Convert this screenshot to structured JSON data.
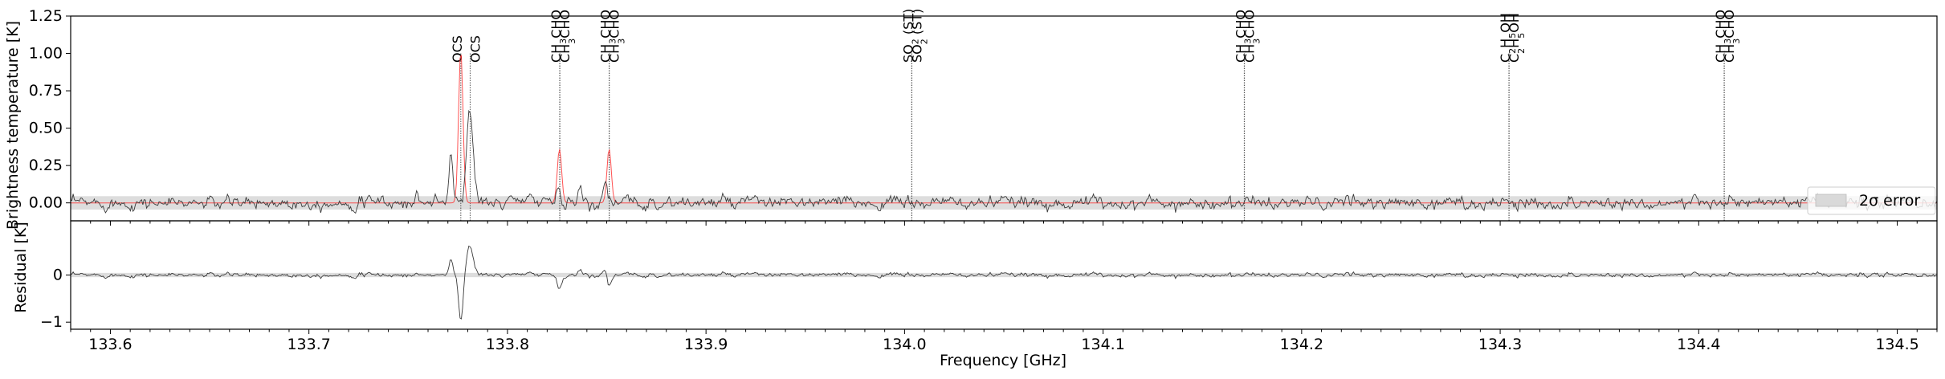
{
  "chart_data": [
    {
      "panel": "spectrum",
      "type": "line",
      "xlim": [
        133.58,
        134.52
      ],
      "ylim": [
        -0.12,
        1.25
      ],
      "ylabel": "Brightness temperature [K]",
      "xlabel": "",
      "yticks": [
        0.0,
        0.25,
        0.5,
        0.75,
        1.0,
        1.25
      ],
      "ytick_labels": [
        "0.00",
        "0.25",
        "0.50",
        "0.75",
        "1.00",
        "1.25"
      ],
      "grid": false,
      "legend": {
        "placement": "right",
        "entries": [
          {
            "label": "2σ error",
            "color": "#d9d9d9"
          }
        ]
      },
      "error_band_2sigma": [
        -0.045,
        0.045
      ],
      "series": [
        {
          "role": "observed",
          "color": "#3a3a3a",
          "baseline_noise_rms": 0.02,
          "peaks": [
            {
              "x": 133.7715,
              "height": 0.36,
              "width": 0.0009
            },
            {
              "x": 133.781,
              "height": 0.62,
              "width": 0.0017
            },
            {
              "x": 133.8125,
              "height": 0.1,
              "width": 0.0008
            },
            {
              "x": 133.8255,
              "height": 0.12,
              "width": 0.0008
            },
            {
              "x": 133.8365,
              "height": 0.12,
              "width": 0.0008
            },
            {
              "x": 133.849,
              "height": 0.15,
              "width": 0.0012
            },
            {
              "x": 133.8305,
              "height": 0.06,
              "width": 0.0006
            },
            {
              "x": 133.7365,
              "height": 0.06,
              "width": 0.0006
            },
            {
              "x": 133.7545,
              "height": 0.05,
              "width": 0.0006
            },
            {
              "x": 133.7635,
              "height": 0.06,
              "width": 0.0006
            },
            {
              "x": 133.8015,
              "height": 0.05,
              "width": 0.0006
            }
          ]
        },
        {
          "role": "model",
          "color": "#ff3333",
          "baseline": 0.0,
          "peaks": [
            {
              "x": 133.7765,
              "height": 1.02,
              "width": 0.0011
            },
            {
              "x": 133.8262,
              "height": 0.36,
              "width": 0.0011
            },
            {
              "x": 133.8512,
              "height": 0.36,
              "width": 0.0011
            }
          ]
        }
      ],
      "line_markers": [
        {
          "x": 133.7765,
          "label": "OCS",
          "html": "OCS"
        },
        {
          "x": 133.7812,
          "label": "OCS",
          "html": "OCS"
        },
        {
          "x": 133.8263,
          "label": "CH3CHO",
          "html": "CH<tspan baseline-shift=\"sub\" font-size=\"11\">3</tspan>CHO"
        },
        {
          "x": 133.8264,
          "label": "CH3CHO",
          "html": "CH<tspan baseline-shift=\"sub\" font-size=\"11\">3</tspan>CHO"
        },
        {
          "x": 133.8512,
          "label": "CH3CHO",
          "html": "CH<tspan baseline-shift=\"sub\" font-size=\"11\">3</tspan>CHO"
        },
        {
          "x": 133.8513,
          "label": "CH3CHO",
          "html": "CH<tspan baseline-shift=\"sub\" font-size=\"11\">3</tspan>CHO"
        },
        {
          "x": 134.0036,
          "label": "SO2 (ST)",
          "html": "SO<tspan baseline-shift=\"sub\" font-size=\"11\">2</tspan> (ST)"
        },
        {
          "x": 134.0037,
          "label": "SO2 (ST)",
          "html": "SO<tspan baseline-shift=\"sub\" font-size=\"11\">2</tspan> (ST)"
        },
        {
          "x": 134.1711,
          "label": "CH3CHO",
          "html": "CH<tspan baseline-shift=\"sub\" font-size=\"11\">3</tspan>CHO"
        },
        {
          "x": 134.1712,
          "label": "CH3CHO",
          "html": "CH<tspan baseline-shift=\"sub\" font-size=\"11\">3</tspan>CHO"
        },
        {
          "x": 134.3044,
          "label": "C2H5OH",
          "html": "C<tspan baseline-shift=\"sub\" font-size=\"11\">2</tspan>H<tspan baseline-shift=\"sub\" font-size=\"11\">5</tspan>OH"
        },
        {
          "x": 134.3045,
          "label": "C2H5OH",
          "html": "C<tspan baseline-shift=\"sub\" font-size=\"11\">2</tspan>H<tspan baseline-shift=\"sub\" font-size=\"11\">5</tspan>OH"
        },
        {
          "x": 134.4128,
          "label": "CH3CHO",
          "html": "CH<tspan baseline-shift=\"sub\" font-size=\"11\">3</tspan>CHO"
        },
        {
          "x": 134.4129,
          "label": "CH3CHO",
          "html": "CH<tspan baseline-shift=\"sub\" font-size=\"11\">3</tspan>CHO"
        }
      ]
    },
    {
      "panel": "residual",
      "type": "line",
      "xlim": [
        133.58,
        134.52
      ],
      "ylim": [
        -1.15,
        1.15
      ],
      "ylabel": "Residual [K]",
      "xlabel": "Frequency [GHz]",
      "yticks": [
        -1,
        0
      ],
      "ytick_labels": [
        "−1",
        "0"
      ],
      "xticks": [
        133.6,
        133.7,
        133.8,
        133.9,
        134.0,
        134.1,
        134.2,
        134.3,
        134.4,
        134.5
      ],
      "xtick_labels": [
        "133.6",
        "133.7",
        "133.8",
        "133.9",
        "134.0",
        "134.1",
        "134.2",
        "134.3",
        "134.4",
        "134.5"
      ],
      "error_band_2sigma": [
        -0.045,
        0.045
      ],
      "series": [
        {
          "role": "residual",
          "color": "#3a3a3a",
          "baseline_noise_rms": 0.02,
          "peaks": [
            {
              "x": 133.7715,
              "height": 0.36,
              "width": 0.0009
            },
            {
              "x": 133.7765,
              "height": -0.98,
              "width": 0.0011
            },
            {
              "x": 133.781,
              "height": 0.62,
              "width": 0.0017
            },
            {
              "x": 133.8125,
              "height": 0.1,
              "width": 0.0008
            },
            {
              "x": 133.8262,
              "height": -0.3,
              "width": 0.0011
            },
            {
              "x": 133.8365,
              "height": 0.12,
              "width": 0.0008
            },
            {
              "x": 133.8512,
              "height": -0.26,
              "width": 0.0011
            },
            {
              "x": 133.849,
              "height": 0.15,
              "width": 0.0012
            }
          ]
        }
      ]
    }
  ]
}
